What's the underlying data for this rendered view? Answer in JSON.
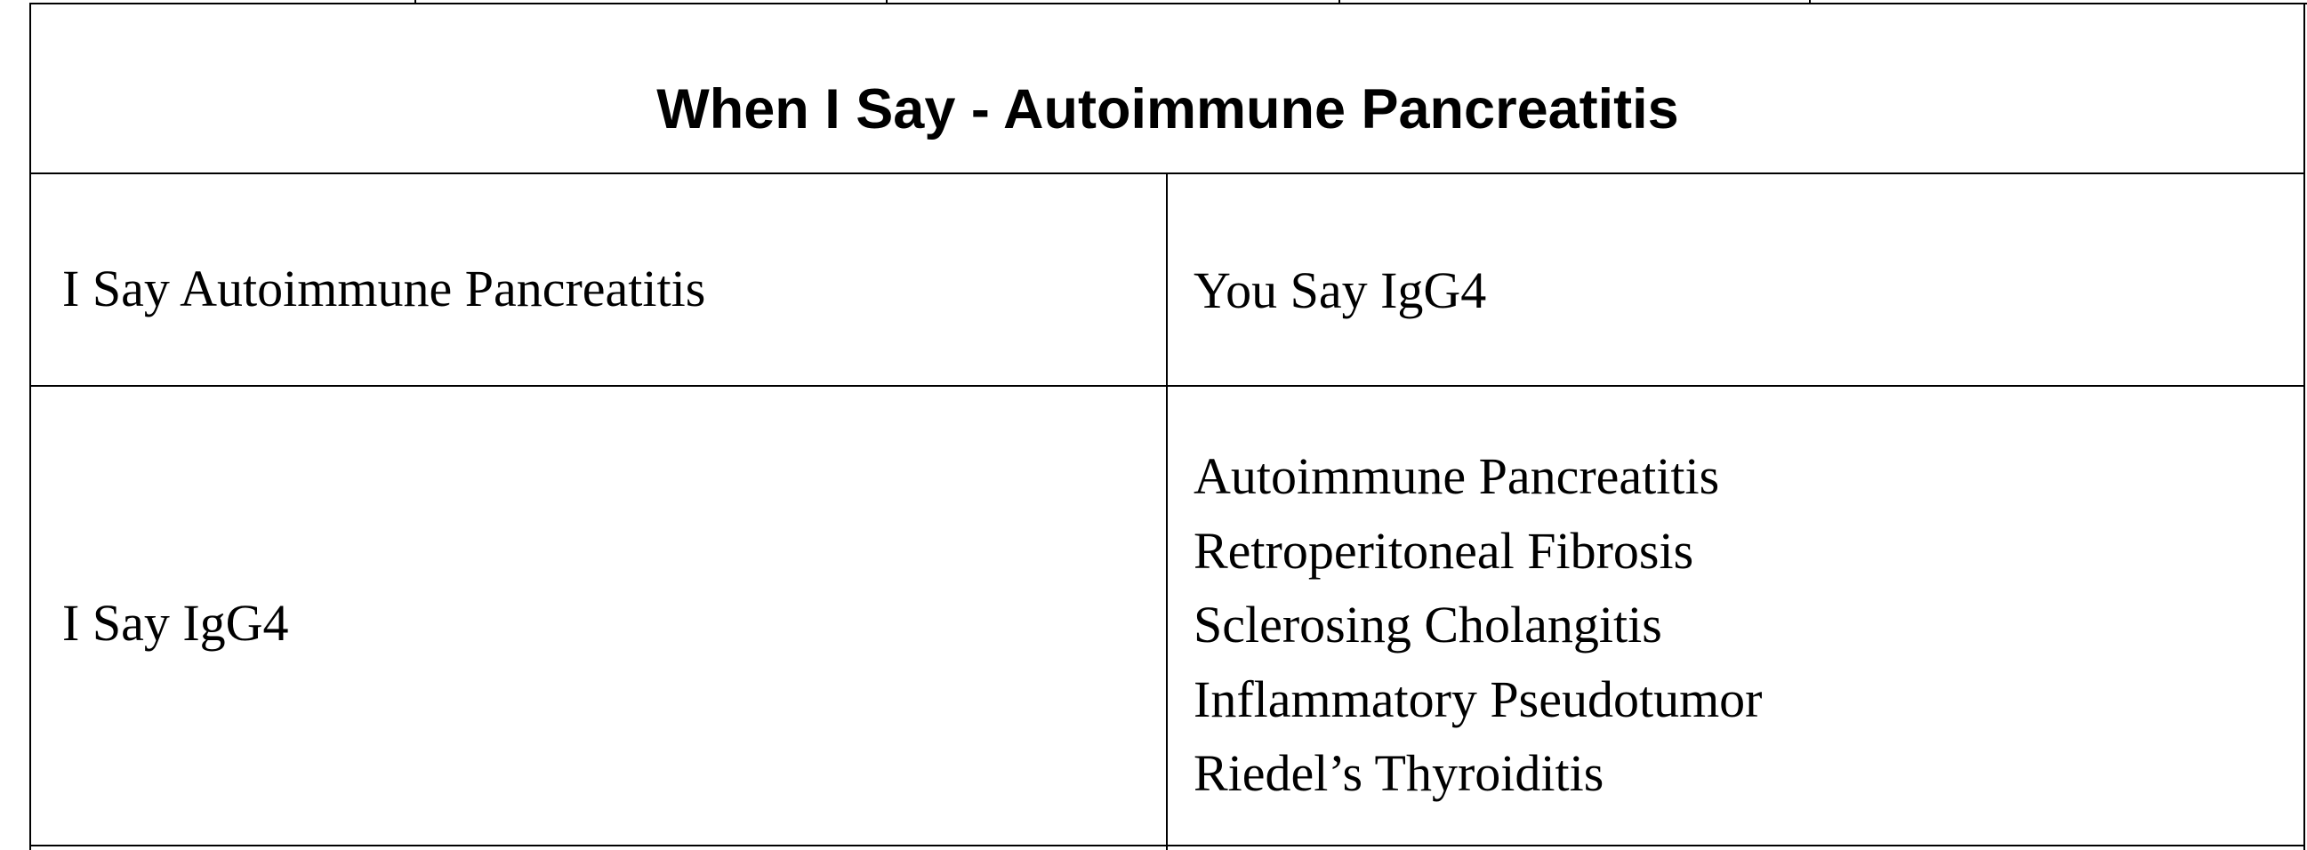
{
  "table": {
    "title": "When I Say - Autoimmune Pancreatitis",
    "rows": [
      {
        "left": "I Say Autoimmune Pancreatitis",
        "right": [
          "You Say IgG4"
        ]
      },
      {
        "left": "I Say IgG4",
        "right": [
          "Autoimmune Pancreatitis",
          "Retroperitoneal Fibrosis",
          "Sclerosing Cholangitis",
          "Inflammatory Pseudotumor",
          "Riedel’s Thyroiditis"
        ]
      }
    ]
  }
}
